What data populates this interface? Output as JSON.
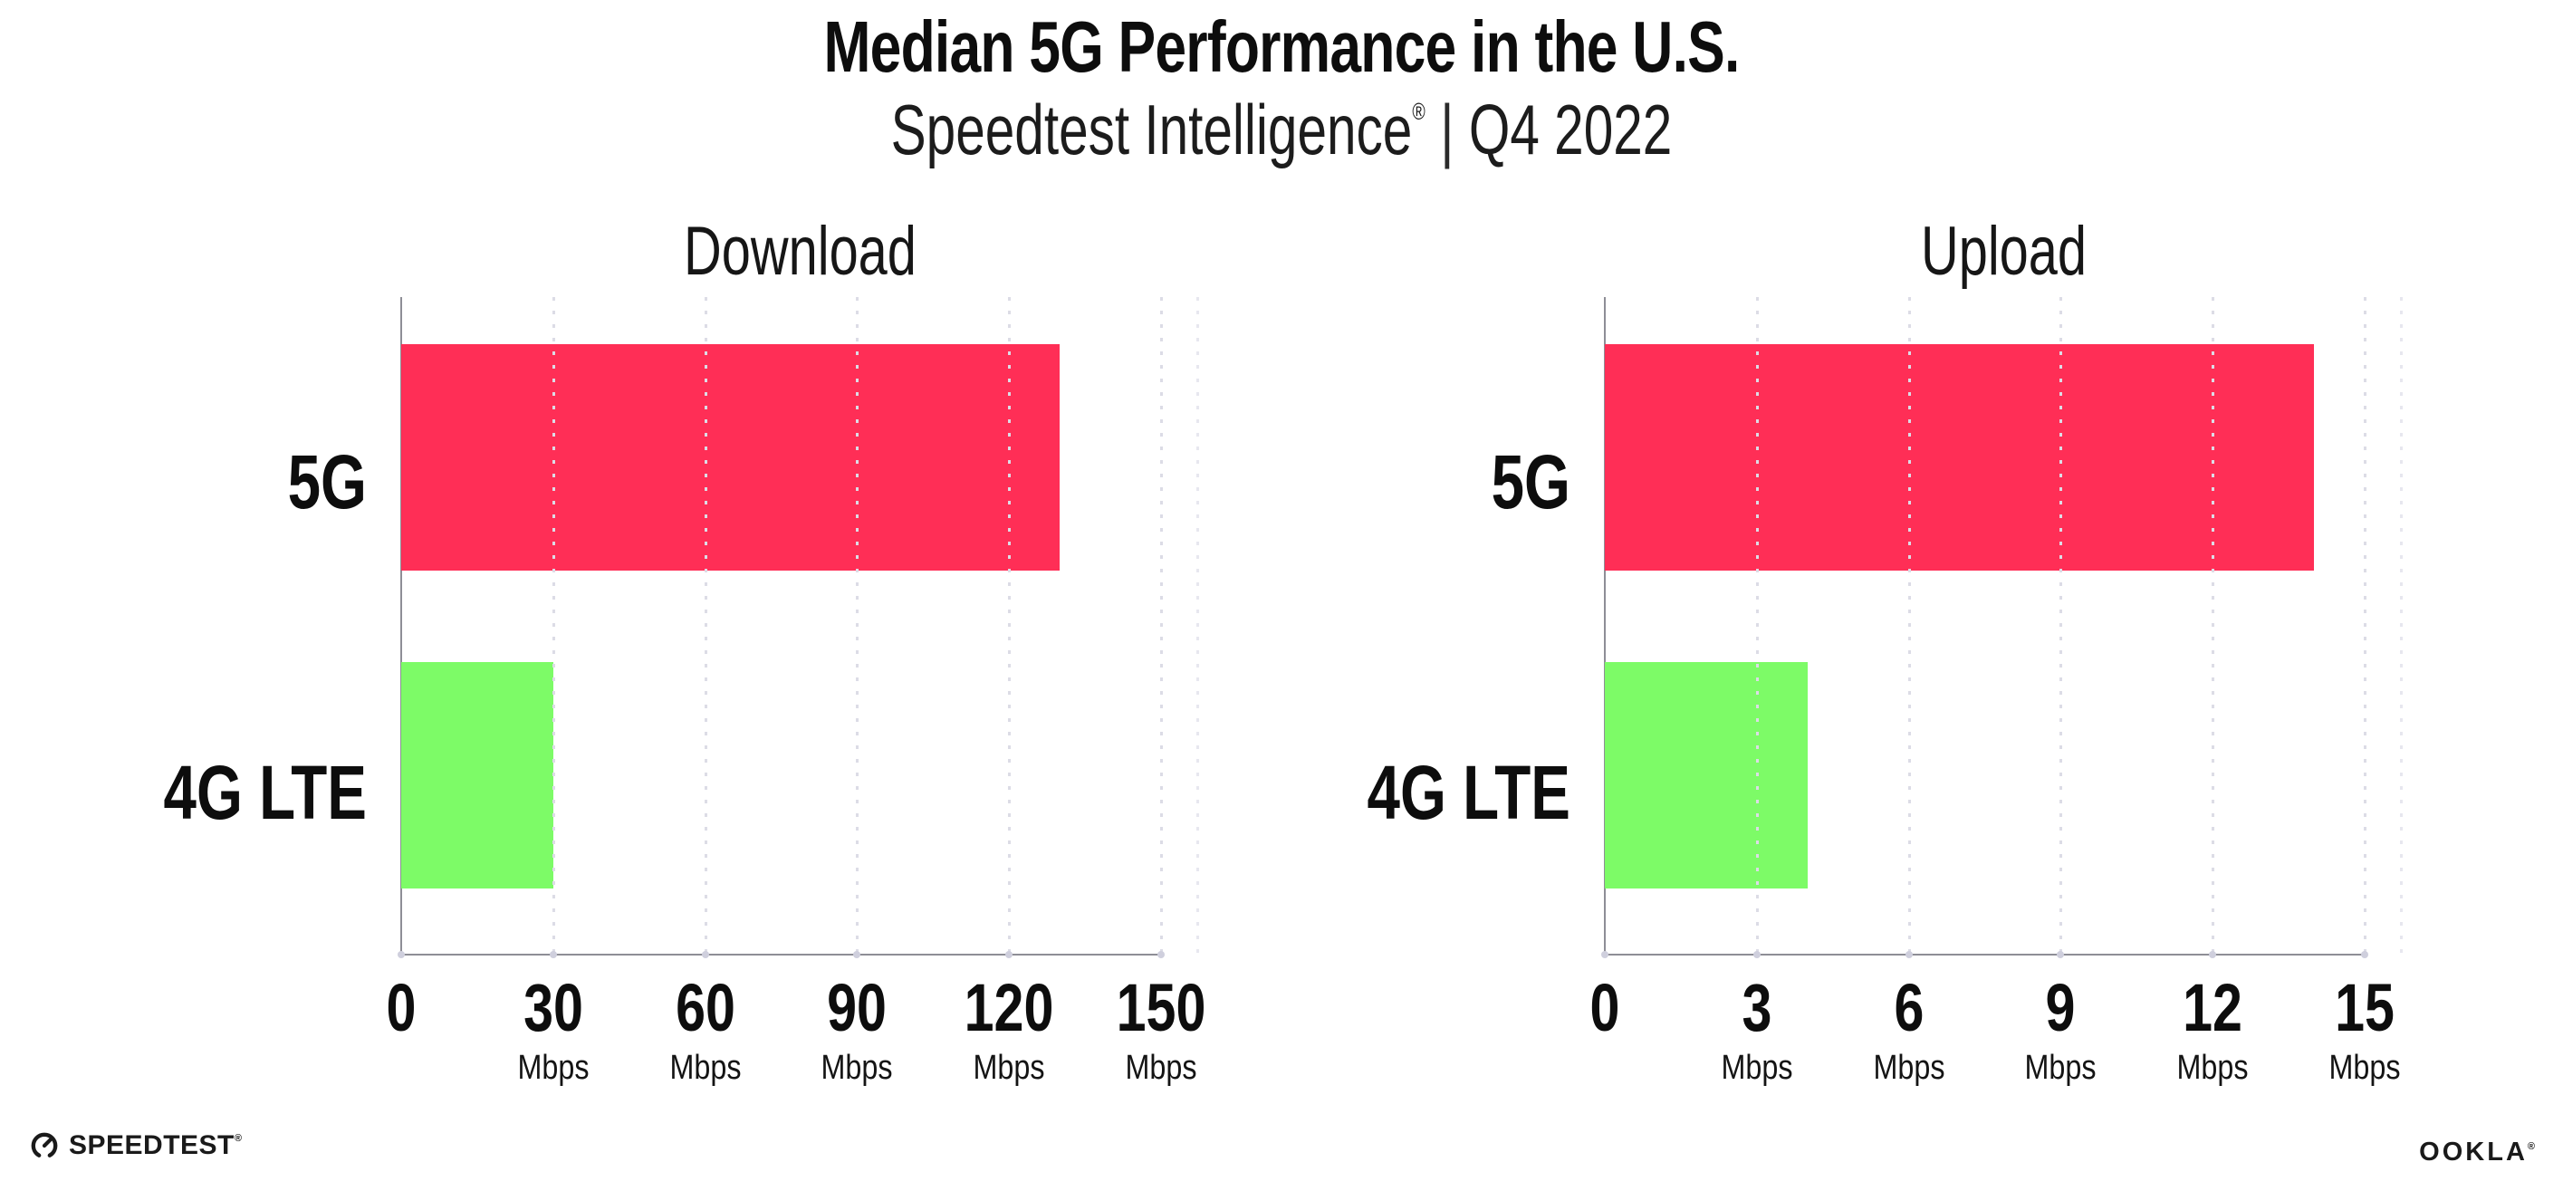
{
  "header": {
    "title": "Median 5G Performance in the U.S.",
    "subtitle": {
      "brand": "Speedtest Intelligence",
      "registered": "®",
      "separator": "|",
      "period": "Q4 2022"
    }
  },
  "chart_data": [
    {
      "type": "bar",
      "orientation": "horizontal",
      "title": "Download",
      "unit": "Mbps",
      "categories": [
        "5G",
        "4G LTE"
      ],
      "values": [
        130,
        30
      ],
      "bar_colors": [
        "#ff2e56",
        "#7dfb67"
      ],
      "xlim": [
        0,
        157.5
      ],
      "xticks": [
        0,
        30,
        60,
        90,
        120,
        150
      ],
      "grid": "dotted-vertical",
      "legend": "none"
    },
    {
      "type": "bar",
      "orientation": "horizontal",
      "title": "Upload",
      "unit": "Mbps",
      "categories": [
        "5G",
        "4G LTE"
      ],
      "values": [
        14,
        4
      ],
      "bar_colors": [
        "#ff2e56",
        "#7dfb67"
      ],
      "xlim": [
        0,
        15.75
      ],
      "xticks": [
        0,
        3,
        6,
        9,
        12,
        15
      ],
      "grid": "dotted-vertical",
      "legend": "none"
    }
  ],
  "footer": {
    "speedtest": "SPEEDTEST",
    "ookla": "OOKLA",
    "registered": "®"
  },
  "colors": {
    "bar_5g": "#ff2e56",
    "bar_4g_lte": "#7dfb67",
    "axis": "#8e8e96",
    "gridline": "#dcdce6",
    "text": "#0d0d0d"
  }
}
